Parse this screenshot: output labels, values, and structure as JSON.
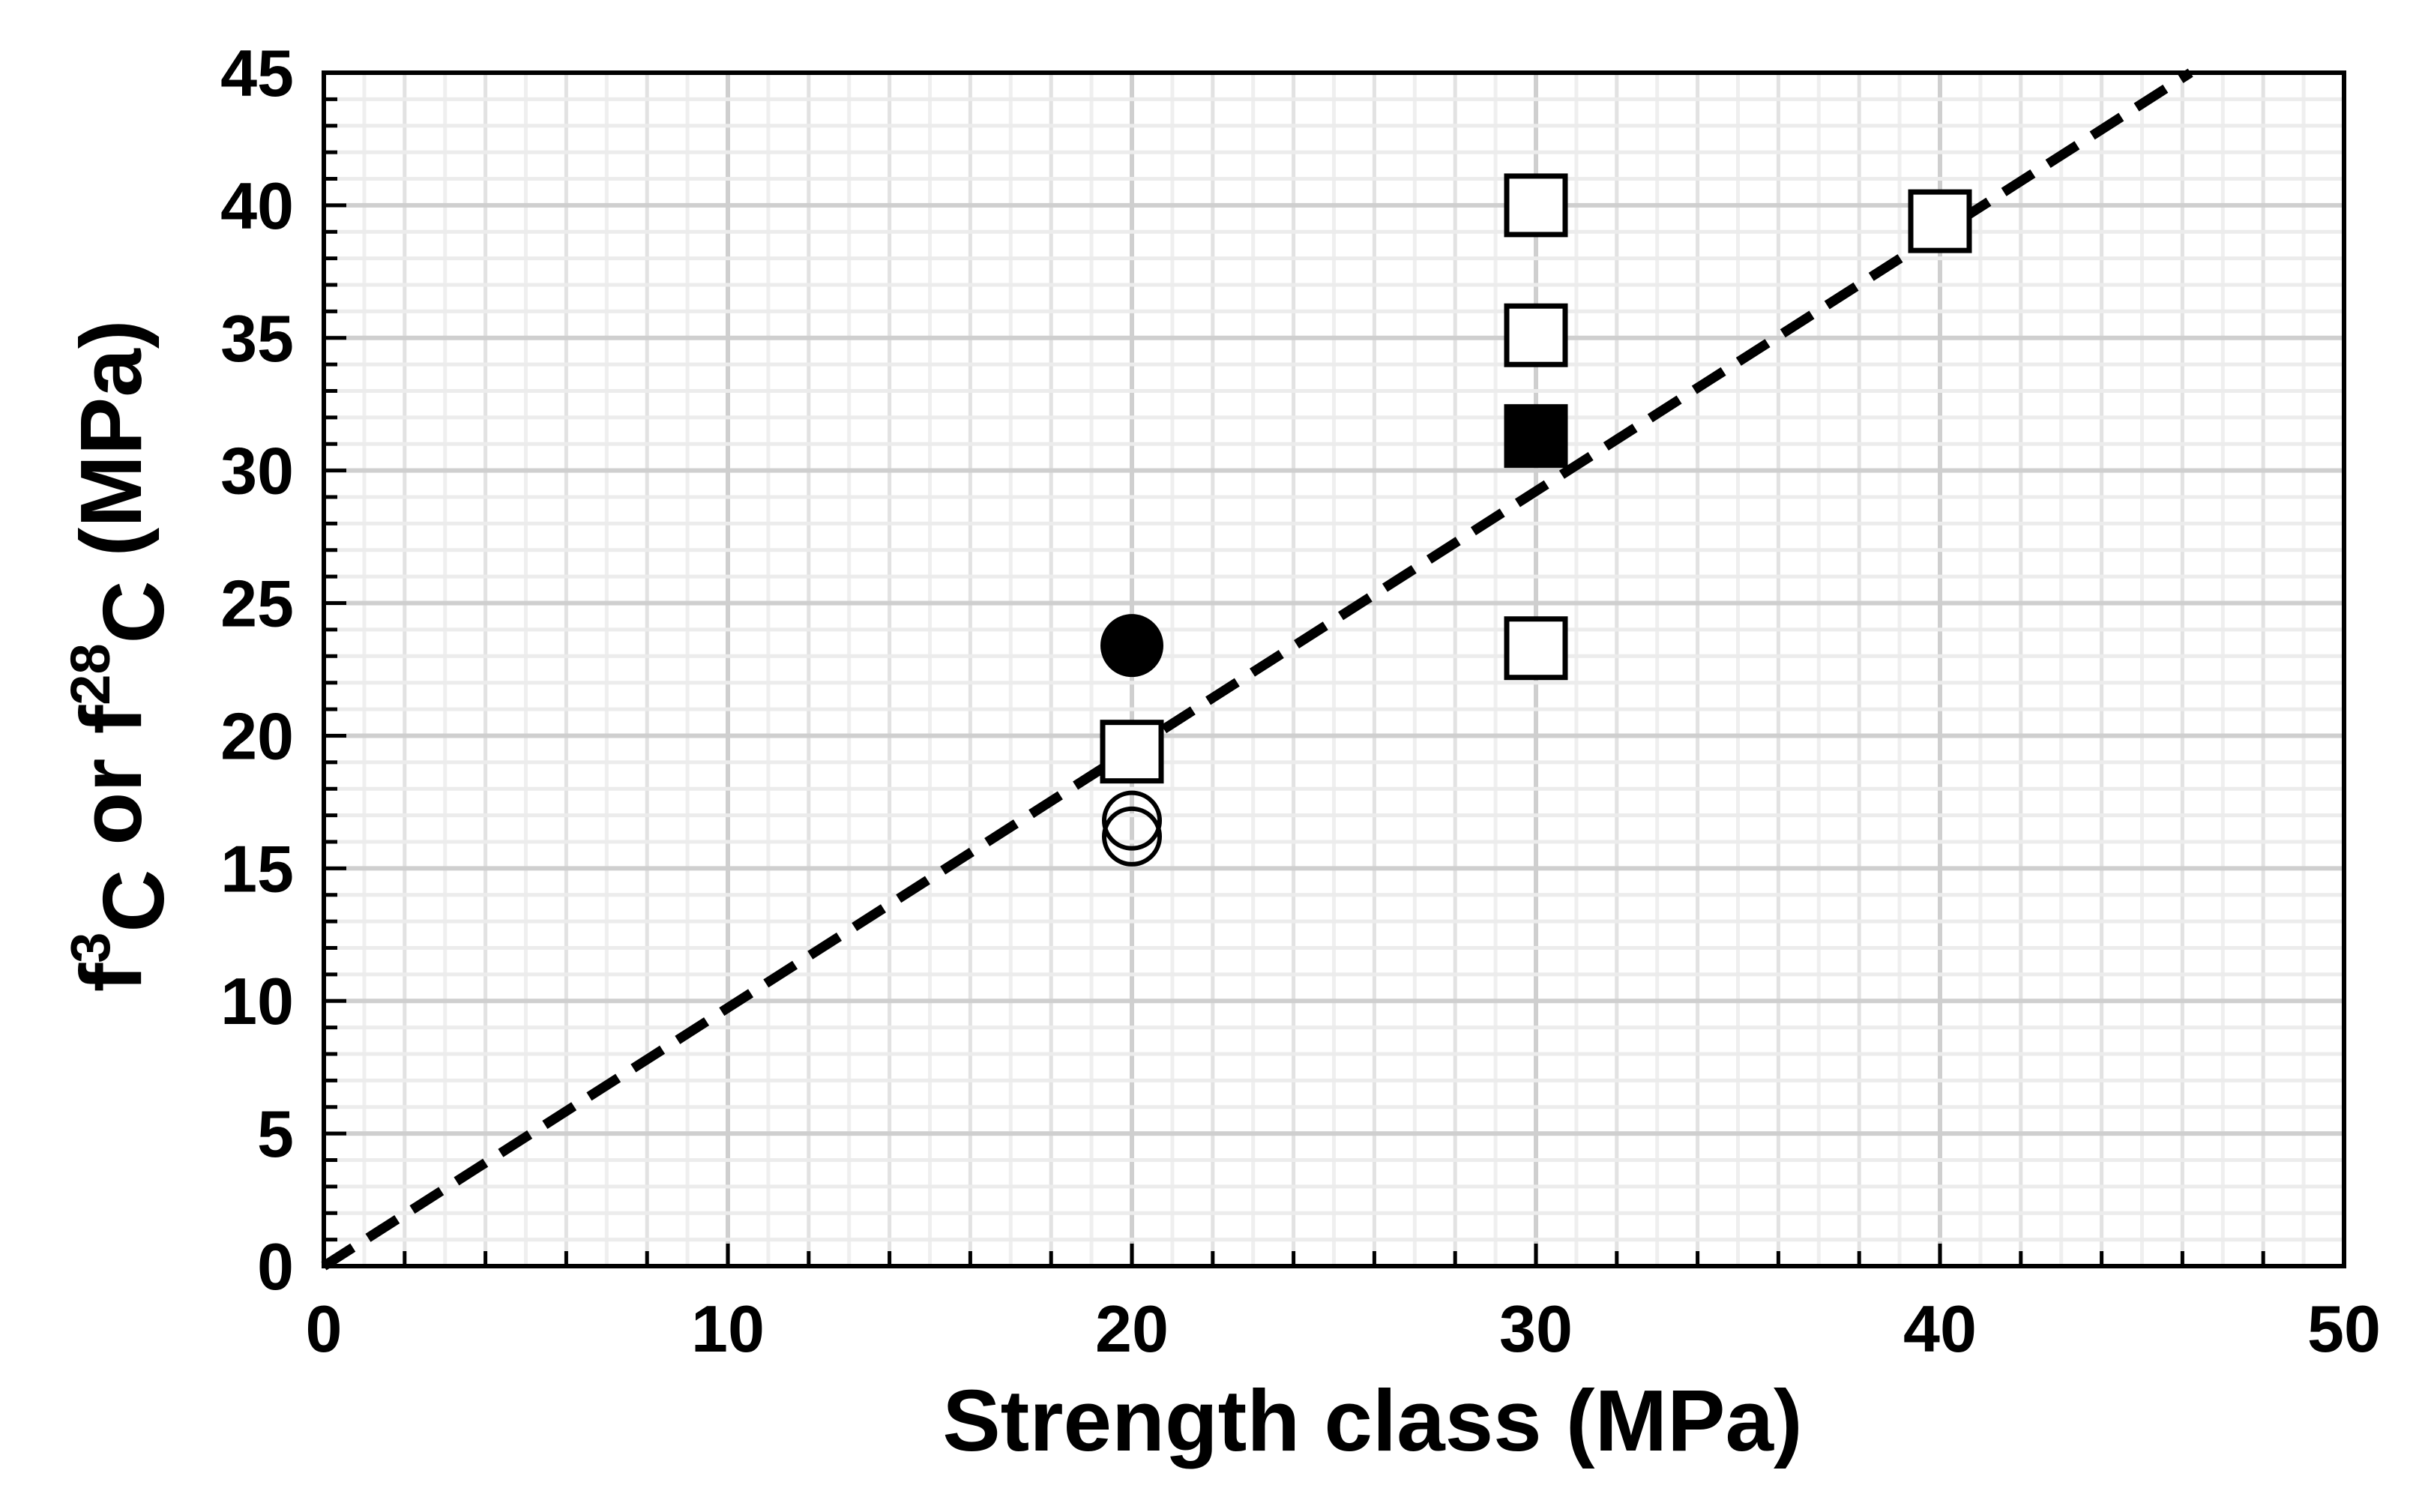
{
  "chart_data": {
    "type": "scatter",
    "xlabel": "Strength class (MPa)",
    "ylabel": {
      "part1": "f",
      "sup1": "3",
      "sub1": "C",
      "part2": " or f",
      "sup2": "28",
      "sub2": "C",
      "part3": " (MPa)"
    },
    "xlim": [
      0,
      50
    ],
    "ylim": [
      0,
      45
    ],
    "xticks": [
      "0",
      "10",
      "20",
      "30",
      "40",
      "50"
    ],
    "yticks": [
      "0",
      "5",
      "10",
      "15",
      "20",
      "25",
      "30",
      "35",
      "40",
      "45"
    ],
    "grid": true,
    "series": [
      {
        "marker": "open-square",
        "points": [
          [
            20,
            19.4
          ],
          [
            30,
            40.0
          ],
          [
            30,
            35.1
          ],
          [
            30,
            23.3
          ],
          [
            40,
            39.4
          ]
        ]
      },
      {
        "marker": "filled-square",
        "points": [
          [
            30,
            31.3
          ]
        ]
      },
      {
        "marker": "filled-circle",
        "points": [
          [
            20,
            23.4
          ]
        ]
      },
      {
        "marker": "open-circle",
        "points": [
          [
            20,
            16.8
          ],
          [
            20,
            16.2
          ]
        ]
      }
    ],
    "reference_line": {
      "style": "dashed",
      "x": [
        0,
        46.2
      ],
      "y": [
        0,
        45
      ]
    }
  }
}
